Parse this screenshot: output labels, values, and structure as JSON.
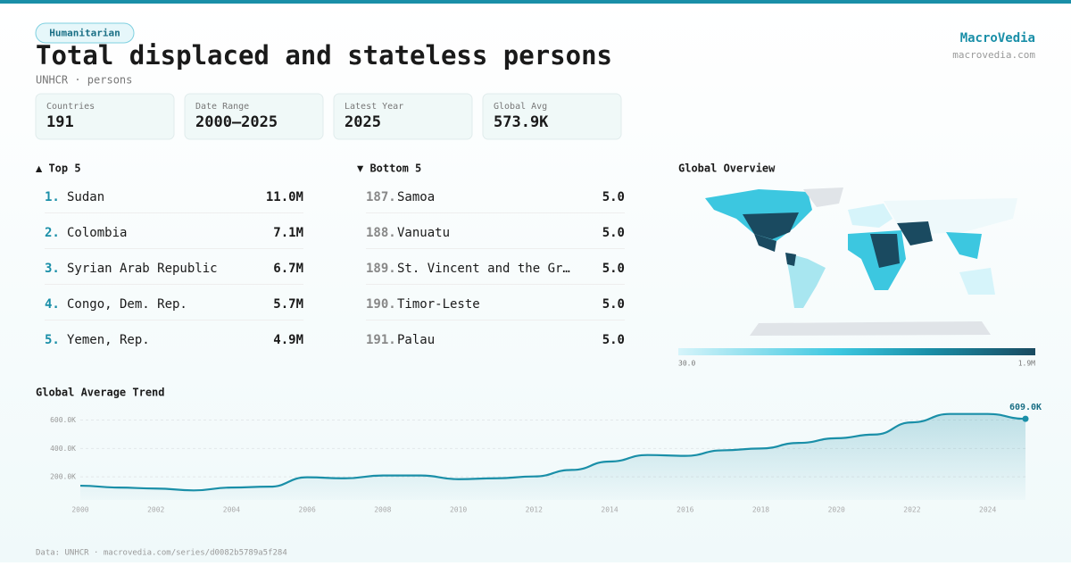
{
  "header": {
    "badge": "Humanitarian",
    "title": "Total displaced and stateless persons",
    "subtitle": "UNHCR · persons",
    "brand": "MacroVedia",
    "site": "macrovedia.com"
  },
  "stats": [
    {
      "label": "Countries",
      "value": "191"
    },
    {
      "label": "Date Range",
      "value": "2000–2025"
    },
    {
      "label": "Latest Year",
      "value": "2025"
    },
    {
      "label": "Global Avg",
      "value": "573.9K"
    }
  ],
  "top": {
    "title": "▲ Top 5",
    "rows": [
      [
        "1.",
        "Sudan",
        "11.0M"
      ],
      [
        "2.",
        "Colombia",
        "7.1M"
      ],
      [
        "3.",
        "Syrian Arab Republic",
        "6.7M"
      ],
      [
        "4.",
        "Congo, Dem. Rep.",
        "5.7M"
      ],
      [
        "5.",
        "Yemen, Rep.",
        "4.9M"
      ]
    ]
  },
  "bottom": {
    "title": "▼ Bottom 5",
    "rows": [
      [
        "187.",
        "Samoa",
        "5.0"
      ],
      [
        "188.",
        "Vanuatu",
        "5.0"
      ],
      [
        "189.",
        "St. Vincent and the Gr…",
        "5.0"
      ],
      [
        "190.",
        "Timor-Leste",
        "5.0"
      ],
      [
        "191.",
        "Palau",
        "5.0"
      ]
    ]
  },
  "map": {
    "title": "Global Overview",
    "legend_min": "30.0",
    "legend_max": "1.9M"
  },
  "chart_data": {
    "type": "line",
    "title": "Global Average Trend",
    "color": "#1a8fa8",
    "x": [
      2000,
      2001,
      2002,
      2003,
      2004,
      2005,
      2006,
      2007,
      2008,
      2009,
      2010,
      2011,
      2012,
      2013,
      2014,
      2015,
      2016,
      2017,
      2018,
      2019,
      2020,
      2021,
      2022,
      2023,
      2024,
      2025
    ],
    "values": [
      138000,
      125000,
      118000,
      105000,
      125000,
      131000,
      197000,
      190000,
      210000,
      210000,
      184000,
      190000,
      203000,
      249000,
      308000,
      354000,
      348000,
      387000,
      400000,
      439000,
      472000,
      498000,
      584000,
      643000,
      643000,
      609000
    ],
    "value_labels": [
      null,
      null,
      null,
      null,
      null,
      null,
      null,
      null,
      null,
      null,
      null,
      null,
      null,
      null,
      null,
      null,
      null,
      null,
      null,
      null,
      null,
      null,
      null,
      null,
      null,
      "609.0K"
    ],
    "xlim": [
      2000,
      2025
    ],
    "xticks": [
      2000,
      2002,
      2004,
      2006,
      2008,
      2010,
      2012,
      2014,
      2016,
      2018,
      2020,
      2022,
      2024
    ],
    "ylim": [
      0,
      660000
    ],
    "yticks": [
      {
        "value": 200000,
        "label": "200.0K"
      },
      {
        "value": 400000,
        "label": "400.0K"
      },
      {
        "value": 600000,
        "label": "600.0K"
      }
    ],
    "grid": true
  },
  "footer": "Data: UNHCR · macrovedia.com/series/d0082b5789a5f284"
}
